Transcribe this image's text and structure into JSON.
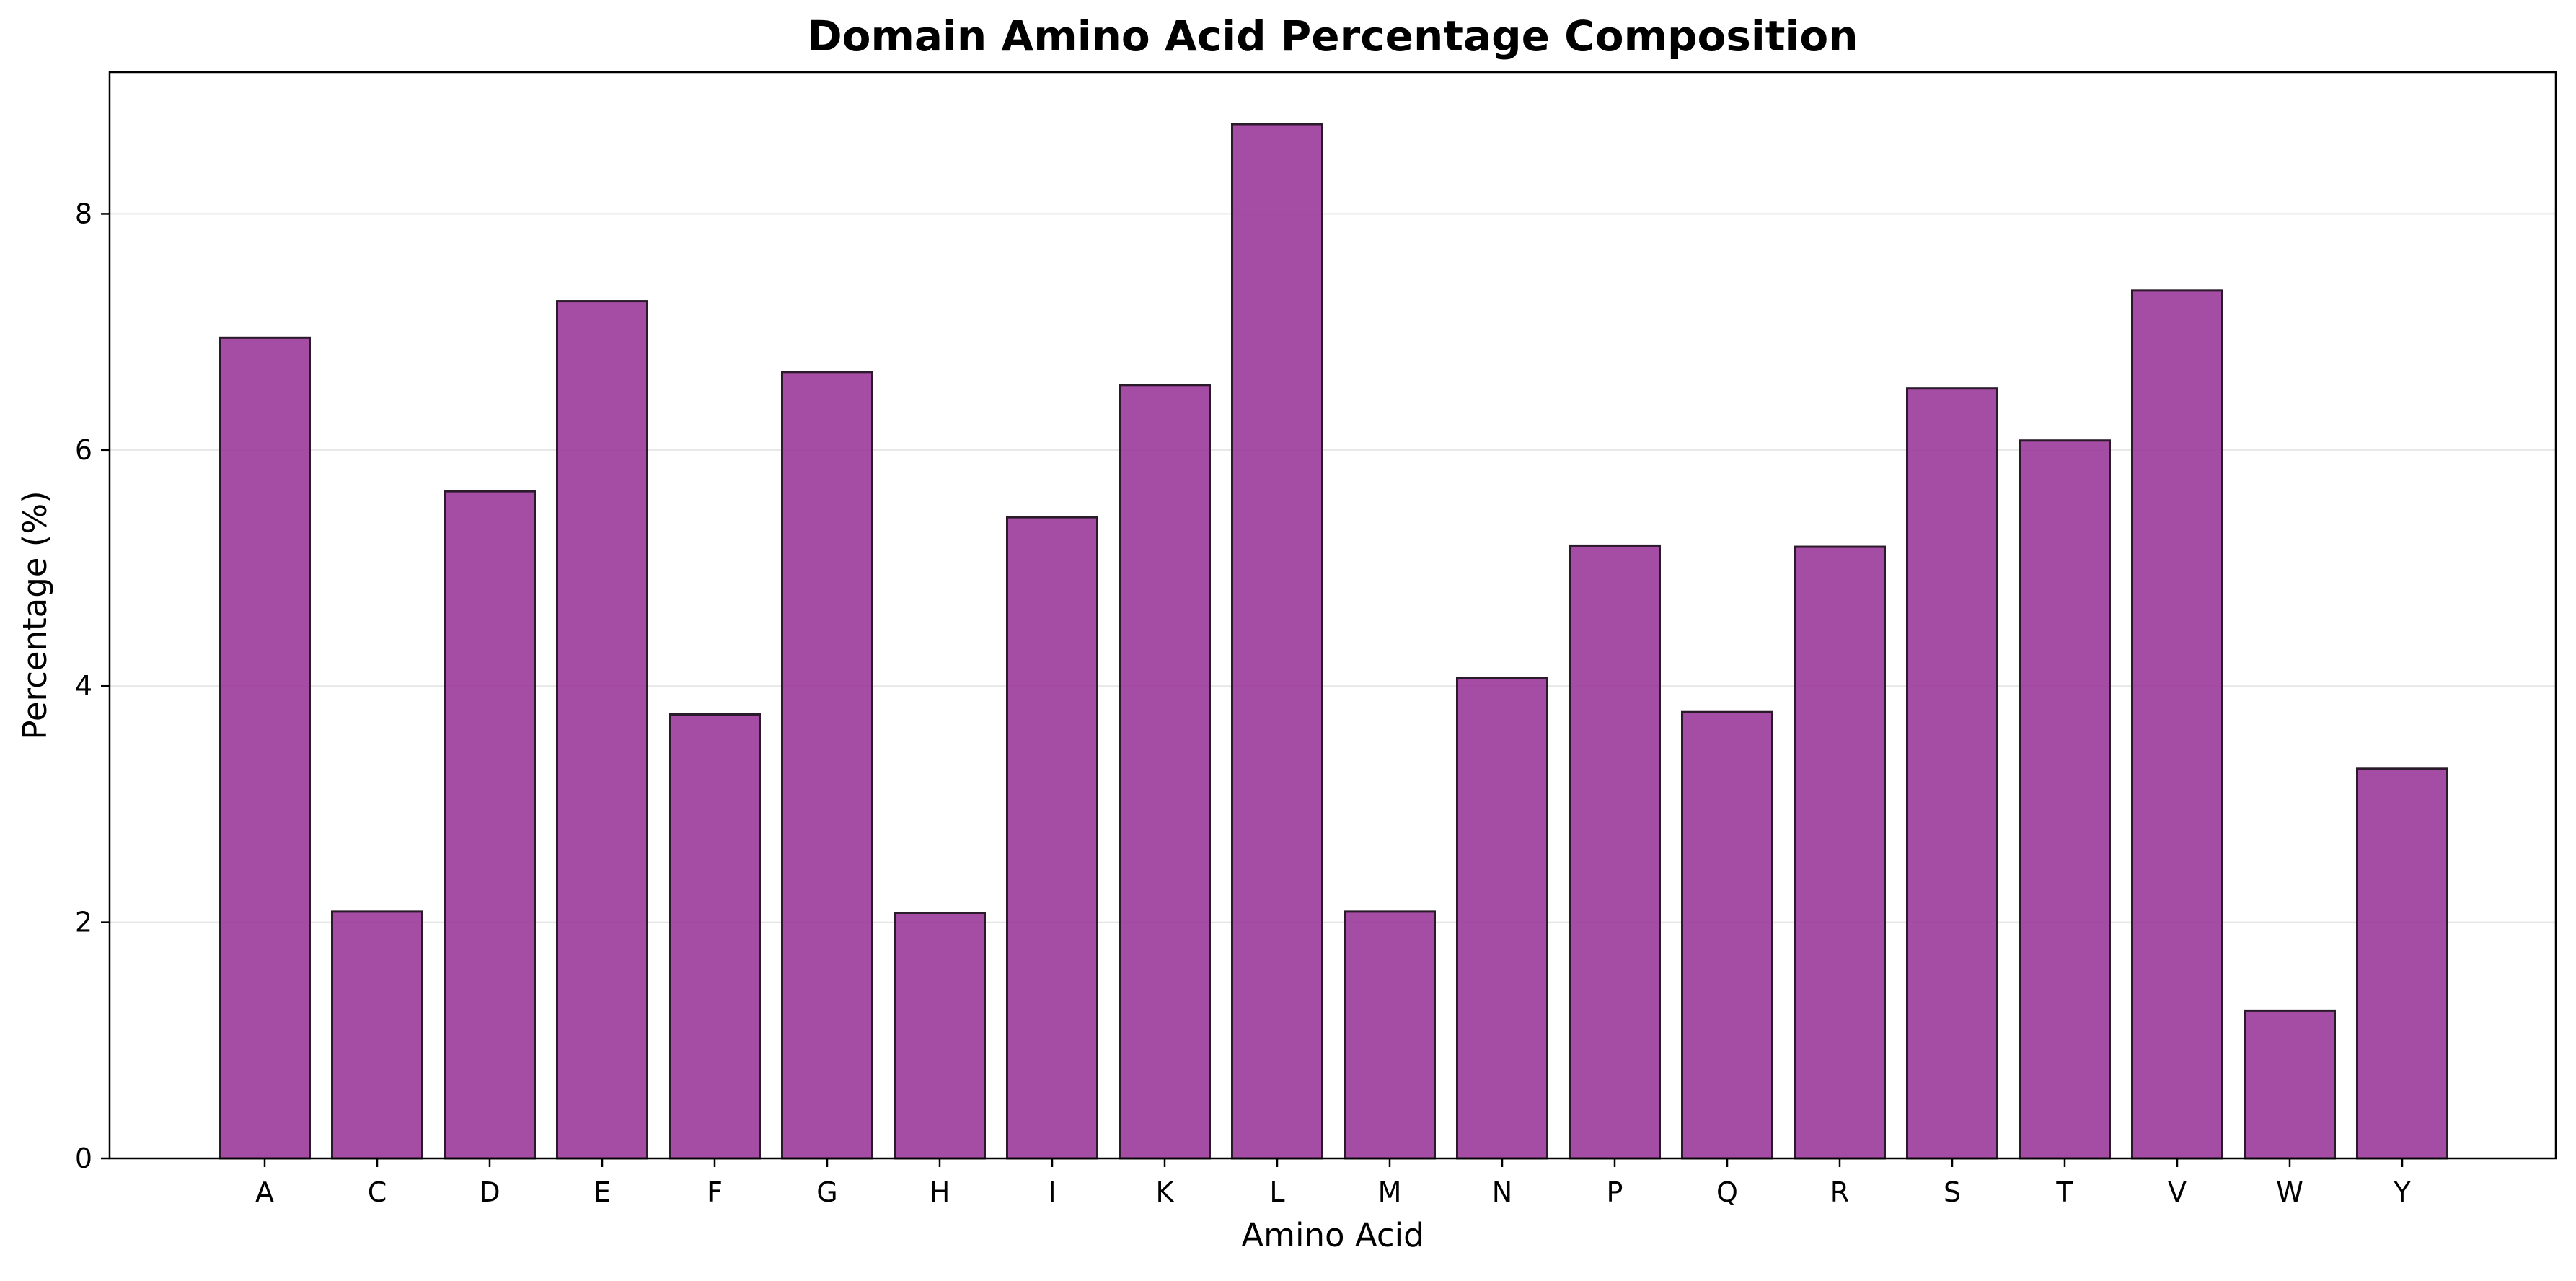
{
  "chart_data": {
    "type": "bar",
    "title": "Domain Amino Acid Percentage Composition",
    "xlabel": "Amino Acid",
    "ylabel": "Percentage (%)",
    "categories": [
      "A",
      "C",
      "D",
      "E",
      "F",
      "G",
      "H",
      "I",
      "K",
      "L",
      "M",
      "N",
      "P",
      "Q",
      "R",
      "S",
      "T",
      "V",
      "W",
      "Y"
    ],
    "values": [
      6.95,
      2.09,
      5.65,
      7.26,
      3.76,
      6.66,
      2.08,
      5.43,
      6.55,
      8.76,
      2.09,
      4.07,
      5.19,
      3.78,
      5.18,
      6.52,
      6.08,
      7.35,
      1.25,
      3.3
    ],
    "ylim": [
      0,
      9.2
    ],
    "yticks": [
      0,
      2,
      4,
      6,
      8
    ],
    "grid": "y",
    "legend": "none",
    "bar_color": "#9b399b",
    "bar_edge_color": "#2a1a2a",
    "grid_color": "#e6e6e6"
  }
}
